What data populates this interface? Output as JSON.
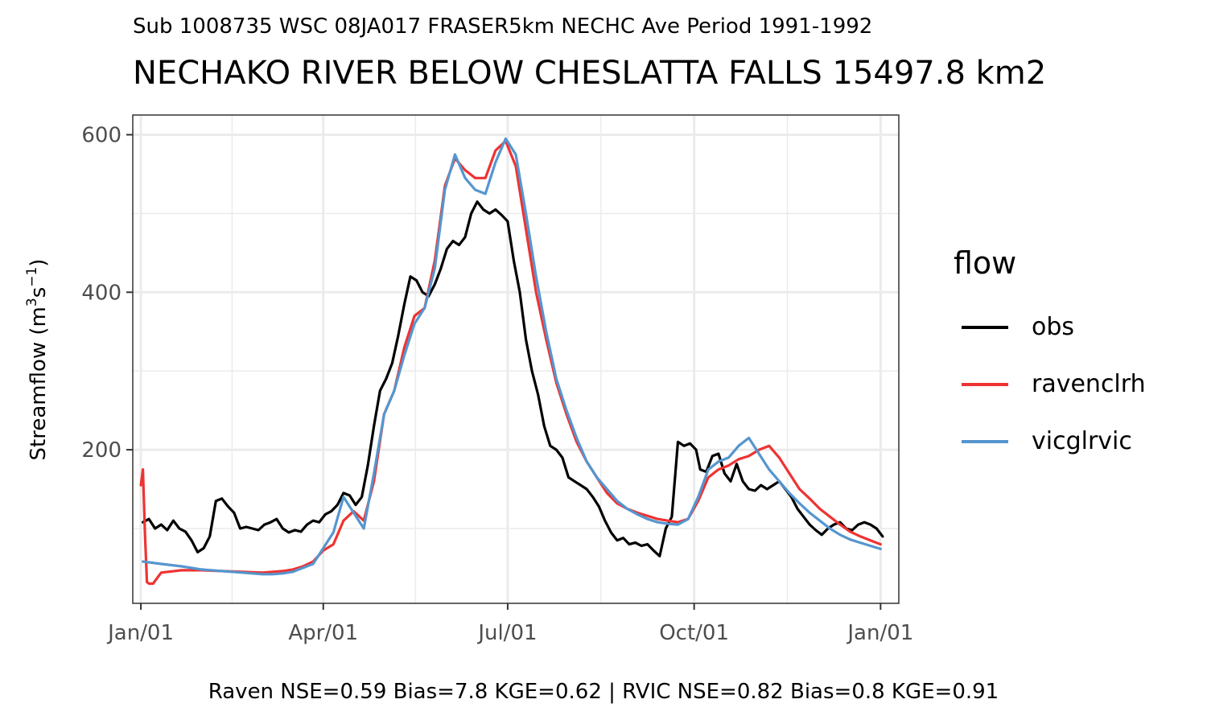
{
  "subtitle": "Sub 1008735 WSC 08JA017 FRASER5km NECHC Ave Period 1991-1992",
  "title": "NECHAKO RIVER BELOW CHESLATTA FALLS 15497.8 km2",
  "caption": "Raven NSE=0.59 Bias=7.8 KGE=0.62 | RVIC NSE=0.82 Bias=0.8 KGE=0.91",
  "legend": {
    "title": "flow",
    "items": [
      {
        "label": "obs",
        "color": "#000000"
      },
      {
        "label": "ravenclrh",
        "color": "#EE3333"
      },
      {
        "label": "vicglrvic",
        "color": "#5596CF"
      }
    ]
  },
  "chart_data": {
    "type": "line",
    "title": "NECHAKO RIVER BELOW CHESLATTA FALLS 15497.8 km2",
    "subtitle": "Sub 1008735 WSC 08JA017 FRASER5km NECHC Ave Period 1991-1992",
    "xlabel": "",
    "ylabel": "Streamflow (m3s-1)",
    "x_ticks": [
      "Jan/01",
      "Apr/01",
      "Jul/01",
      "Oct/01",
      "Jan/01"
    ],
    "x_unit": "days from Jan/01",
    "xlim": [
      -4,
      374
    ],
    "y_ticks": [
      200,
      400,
      600
    ],
    "ylim": [
      5,
      625
    ],
    "grid": true,
    "legend_position": "right",
    "series": [
      {
        "name": "obs",
        "color": "#000000",
        "x": [
          1,
          4,
          7,
          10,
          13,
          16,
          19,
          22,
          25,
          28,
          31,
          34,
          37,
          40,
          43,
          46,
          49,
          52,
          55,
          58,
          61,
          64,
          67,
          70,
          73,
          76,
          79,
          82,
          85,
          88,
          91,
          94,
          97,
          100,
          103,
          106,
          109,
          112,
          115,
          118,
          121,
          124,
          127,
          130,
          133,
          136,
          139,
          142,
          145,
          148,
          151,
          154,
          157,
          160,
          163,
          166,
          169,
          172,
          175,
          178,
          181,
          184,
          187,
          190,
          193,
          196,
          199,
          202,
          205,
          208,
          211,
          214,
          217,
          220,
          223,
          226,
          229,
          232,
          235,
          238,
          241,
          244,
          247,
          250,
          253,
          256,
          259,
          262,
          265,
          268,
          271,
          274,
          276,
          279,
          282,
          285,
          288,
          291,
          294,
          297,
          300,
          303,
          306,
          309,
          312,
          315,
          318,
          321,
          324,
          327,
          330,
          333,
          336,
          339,
          342,
          345,
          348,
          351,
          354,
          357,
          360,
          363,
          366
        ],
        "y": [
          108,
          112,
          100,
          105,
          98,
          110,
          100,
          96,
          85,
          70,
          75,
          90,
          135,
          138,
          128,
          120,
          100,
          102,
          100,
          98,
          105,
          108,
          112,
          100,
          95,
          98,
          96,
          105,
          110,
          108,
          118,
          122,
          130,
          145,
          142,
          130,
          140,
          180,
          230,
          275,
          290,
          310,
          345,
          385,
          420,
          415,
          400,
          395,
          410,
          430,
          455,
          465,
          460,
          470,
          500,
          515,
          505,
          500,
          505,
          498,
          490,
          440,
          400,
          340,
          300,
          270,
          230,
          205,
          200,
          190,
          165,
          160,
          155,
          150,
          140,
          128,
          110,
          95,
          85,
          88,
          80,
          82,
          78,
          80,
          72,
          65,
          100,
          115,
          210,
          205,
          208,
          200,
          175,
          172,
          192,
          195,
          170,
          160,
          182,
          160,
          150,
          148,
          155,
          150,
          155,
          160,
          150,
          140,
          125,
          115,
          105,
          98,
          92,
          100,
          105,
          108,
          100,
          98,
          105,
          108,
          105,
          100,
          90
        ]
      },
      {
        "name": "ravenclrh",
        "color": "#EE3333",
        "x": [
          0,
          1,
          2,
          3,
          4,
          6,
          10,
          20,
          30,
          40,
          50,
          60,
          65,
          70,
          75,
          80,
          85,
          90,
          95,
          100,
          105,
          110,
          115,
          120,
          125,
          130,
          135,
          140,
          145,
          150,
          155,
          160,
          165,
          170,
          175,
          180,
          185,
          190,
          195,
          200,
          205,
          210,
          215,
          220,
          225,
          230,
          235,
          240,
          245,
          250,
          255,
          260,
          265,
          270,
          275,
          280,
          285,
          290,
          295,
          300,
          305,
          310,
          315,
          320,
          325,
          330,
          335,
          340,
          345,
          350,
          355,
          360,
          365
        ],
        "y": [
          155,
          175,
          95,
          32,
          30,
          30,
          44,
          47,
          47,
          46,
          45,
          44,
          45,
          46,
          48,
          52,
          58,
          72,
          80,
          110,
          122,
          110,
          160,
          245,
          275,
          330,
          370,
          380,
          440,
          535,
          570,
          555,
          545,
          545,
          580,
          592,
          560,
          480,
          400,
          340,
          285,
          245,
          210,
          185,
          165,
          145,
          132,
          125,
          120,
          116,
          112,
          110,
          108,
          112,
          135,
          165,
          175,
          180,
          188,
          192,
          200,
          205,
          190,
          170,
          150,
          138,
          125,
          115,
          105,
          96,
          90,
          85,
          80
        ]
      },
      {
        "name": "vicglrvic",
        "color": "#5596CF",
        "x": [
          1,
          10,
          20,
          30,
          40,
          50,
          60,
          65,
          70,
          75,
          80,
          85,
          90,
          95,
          100,
          105,
          110,
          115,
          120,
          125,
          130,
          135,
          140,
          145,
          150,
          155,
          160,
          165,
          170,
          175,
          180,
          185,
          190,
          195,
          200,
          205,
          210,
          215,
          220,
          225,
          230,
          235,
          240,
          245,
          250,
          255,
          260,
          265,
          270,
          275,
          280,
          285,
          290,
          295,
          300,
          305,
          310,
          315,
          320,
          325,
          330,
          335,
          340,
          345,
          350,
          355,
          360,
          365
        ],
        "y": [
          58,
          55,
          52,
          48,
          46,
          44,
          42,
          42,
          43,
          45,
          50,
          55,
          75,
          95,
          140,
          120,
          100,
          170,
          245,
          275,
          320,
          360,
          380,
          430,
          530,
          575,
          545,
          530,
          525,
          565,
          595,
          575,
          500,
          420,
          350,
          290,
          250,
          215,
          185,
          165,
          150,
          135,
          125,
          118,
          112,
          108,
          106,
          105,
          112,
          140,
          175,
          185,
          190,
          205,
          215,
          195,
          175,
          160,
          145,
          132,
          120,
          110,
          100,
          92,
          86,
          82,
          78,
          74
        ]
      }
    ]
  }
}
